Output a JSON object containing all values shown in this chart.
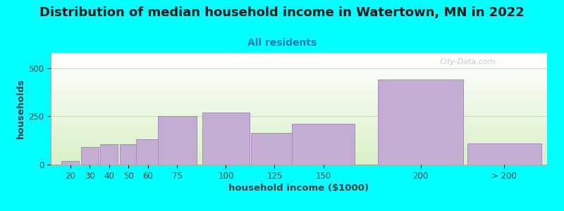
{
  "title": "Distribution of median household income in Watertown, MN in 2022",
  "subtitle": "All residents",
  "xlabel": "household income ($1000)",
  "ylabel": "households",
  "background_color": "#00FFFF",
  "bar_color": "#c4aed4",
  "bar_edge_color": "#a888c0",
  "bar_heights": [
    20,
    90,
    105,
    105,
    130,
    250,
    270,
    165,
    210,
    440,
    110
  ],
  "yticks": [
    0,
    250,
    500
  ],
  "ylim": [
    0,
    580
  ],
  "title_fontsize": 13,
  "subtitle_fontsize": 10,
  "axis_label_fontsize": 9.5,
  "tick_fontsize": 8.5,
  "watermark_text": "City-Data.com"
}
